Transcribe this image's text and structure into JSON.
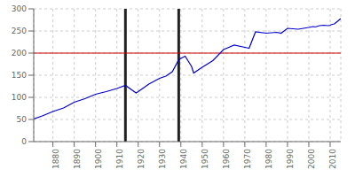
{
  "chart_data": {
    "type": "line",
    "x": [
      1871,
      1875,
      1880,
      1885,
      1890,
      1895,
      1900,
      1905,
      1910,
      1914,
      1919,
      1920,
      1925,
      1930,
      1933,
      1936,
      1939,
      1940,
      1942,
      1945,
      1946,
      1950,
      1955,
      1960,
      1961,
      1965,
      1970,
      1971,
      1972,
      1975,
      1980,
      1985,
      1987,
      1990,
      1995,
      2000,
      2002,
      2003,
      2005,
      2007,
      2009,
      2010,
      2011,
      2012,
      2013,
      2014,
      2015
    ],
    "values": [
      51000,
      58000,
      68000,
      76000,
      89000,
      97000,
      107000,
      113000,
      120000,
      127000,
      110000,
      113000,
      130000,
      143000,
      148000,
      158000,
      185000,
      188000,
      193000,
      170000,
      155000,
      168000,
      183000,
      208000,
      210000,
      218000,
      213000,
      212000,
      211000,
      248000,
      245000,
      247000,
      245000,
      256000,
      254000,
      258000,
      260000,
      259000,
      262000,
      263000,
      262000,
      263000,
      265000,
      266000,
      270000,
      274000,
      278000
    ],
    "color": "#0000cc",
    "xlim": [
      1871,
      2015
    ],
    "xticks": [
      1880,
      1890,
      1900,
      1910,
      1920,
      1930,
      1940,
      1950,
      1960,
      1970,
      1980,
      1990,
      2000,
      2010
    ],
    "ylim": [
      0,
      300000
    ],
    "yticks": [
      0,
      {
        "value": 50000,
        "label": "50"
      },
      {
        "value": 100000,
        "label": "100"
      },
      {
        "value": 150000,
        "label": "150"
      },
      {
        "value": 200000,
        "label": "200"
      },
      {
        "value": 250000,
        "label": "250"
      },
      {
        "value": 300000,
        "label": "300"
      }
    ],
    "grid": true,
    "reference_lines": [
      {
        "axis": "y",
        "value": 200000,
        "color": "#cc0000"
      },
      {
        "axis": "x",
        "value": 1914,
        "color": "#222222"
      },
      {
        "axis": "x",
        "value": 1939,
        "color": "#222222"
      }
    ]
  }
}
